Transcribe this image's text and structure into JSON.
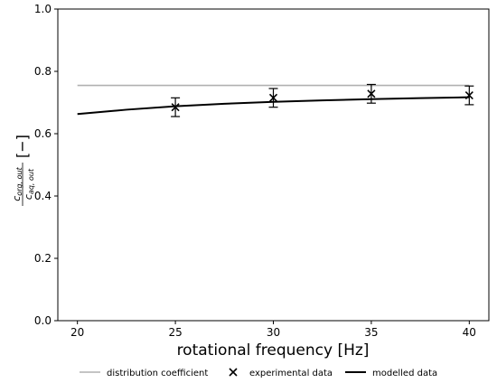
{
  "chart_data": {
    "type": "line",
    "xlabel": "rotational frequency [Hz]",
    "ylabel": {
      "numerator_main": "c",
      "numerator_sub": "org, out",
      "denominator_main": "c",
      "denominator_sub": "aq, out",
      "unit": "[−]"
    },
    "xlim": [
      19,
      41
    ],
    "ylim": [
      0.0,
      1.0
    ],
    "xticks": [
      "20",
      "25",
      "30",
      "35",
      "40"
    ],
    "xtick_values": [
      20,
      25,
      30,
      35,
      40
    ],
    "yticks": [
      "0.0",
      "0.2",
      "0.4",
      "0.6",
      "0.8",
      "1.0"
    ],
    "ytick_values": [
      0.0,
      0.2,
      0.4,
      0.6,
      0.8,
      1.0
    ],
    "legend_position": "bottom",
    "series": [
      {
        "name": "distribution coefficient",
        "kind": "line",
        "color": "#b0b0b0",
        "x": [
          20,
          40
        ],
        "y": [
          0.755,
          0.755
        ]
      },
      {
        "name": "experimental data",
        "kind": "scatter-errorbar",
        "marker": "x",
        "color": "#000000",
        "x": [
          25,
          30,
          35,
          40
        ],
        "y": [
          0.685,
          0.715,
          0.728,
          0.723
        ],
        "err": [
          0.03,
          0.03,
          0.03,
          0.03
        ]
      },
      {
        "name": "modelled data",
        "kind": "line",
        "color": "#000000",
        "x": [
          20,
          22.5,
          25,
          27.5,
          30,
          32.5,
          35,
          37.5,
          40
        ],
        "y": [
          0.663,
          0.677,
          0.688,
          0.696,
          0.702,
          0.707,
          0.711,
          0.714,
          0.717
        ]
      }
    ]
  }
}
